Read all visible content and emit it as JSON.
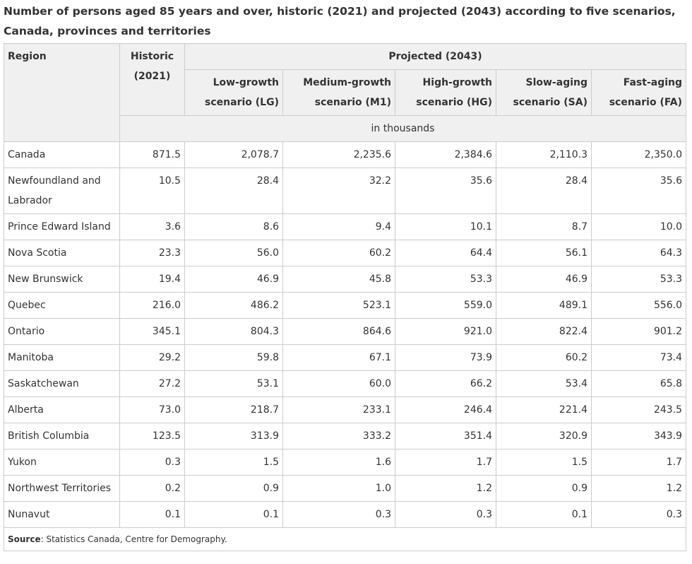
{
  "caption": "Number of persons aged 85 years and over, historic (2021) and projected (2043) according to five scenarios, Canada, provinces and territories",
  "headers": {
    "region": "Region",
    "historic": "Historic (2021)",
    "projected": "Projected (2043)",
    "scenarios": [
      "Low-growth scenario (LG)",
      "Medium-growth scenario (M1)",
      "High-growth scenario (HG)",
      "Slow-aging scenario (SA)",
      "Fast-aging scenario (FA)"
    ],
    "units": "in thousands"
  },
  "rows": [
    {
      "region": "Canada",
      "values": [
        "871.5",
        "2,078.7",
        "2,235.6",
        "2,384.6",
        "2,110.3",
        "2,350.0"
      ]
    },
    {
      "region": "Newfoundland and Labrador",
      "values": [
        "10.5",
        "28.4",
        "32.2",
        "35.6",
        "28.4",
        "35.6"
      ]
    },
    {
      "region": "Prince Edward Island",
      "values": [
        "3.6",
        "8.6",
        "9.4",
        "10.1",
        "8.7",
        "10.0"
      ]
    },
    {
      "region": "Nova Scotia",
      "values": [
        "23.3",
        "56.0",
        "60.2",
        "64.4",
        "56.1",
        "64.3"
      ]
    },
    {
      "region": "New Brunswick",
      "values": [
        "19.4",
        "46.9",
        "45.8",
        "53.3",
        "46.9",
        "53.3"
      ]
    },
    {
      "region": "Quebec",
      "values": [
        "216.0",
        "486.2",
        "523.1",
        "559.0",
        "489.1",
        "556.0"
      ]
    },
    {
      "region": "Ontario",
      "values": [
        "345.1",
        "804.3",
        "864.6",
        "921.0",
        "822.4",
        "901.2"
      ]
    },
    {
      "region": "Manitoba",
      "values": [
        "29.2",
        "59.8",
        "67.1",
        "73.9",
        "60.2",
        "73.4"
      ]
    },
    {
      "region": "Saskatchewan",
      "values": [
        "27.2",
        "53.1",
        "60.0",
        "66.2",
        "53.4",
        "65.8"
      ]
    },
    {
      "region": "Alberta",
      "values": [
        "73.0",
        "218.7",
        "233.1",
        "246.4",
        "221.4",
        "243.5"
      ]
    },
    {
      "region": "British Columbia",
      "values": [
        "123.5",
        "313.9",
        "333.2",
        "351.4",
        "320.9",
        "343.9"
      ]
    },
    {
      "region": "Yukon",
      "values": [
        "0.3",
        "1.5",
        "1.6",
        "1.7",
        "1.5",
        "1.7"
      ]
    },
    {
      "region": "Northwest Territories",
      "values": [
        "0.2",
        "0.9",
        "1.0",
        "1.2",
        "0.9",
        "1.2"
      ]
    },
    {
      "region": "Nunavut",
      "values": [
        "0.1",
        "0.1",
        "0.3",
        "0.3",
        "0.1",
        "0.3"
      ]
    }
  ],
  "footer": {
    "source_label": "Source",
    "source_text": ": Statistics Canada, Centre for Demography."
  }
}
